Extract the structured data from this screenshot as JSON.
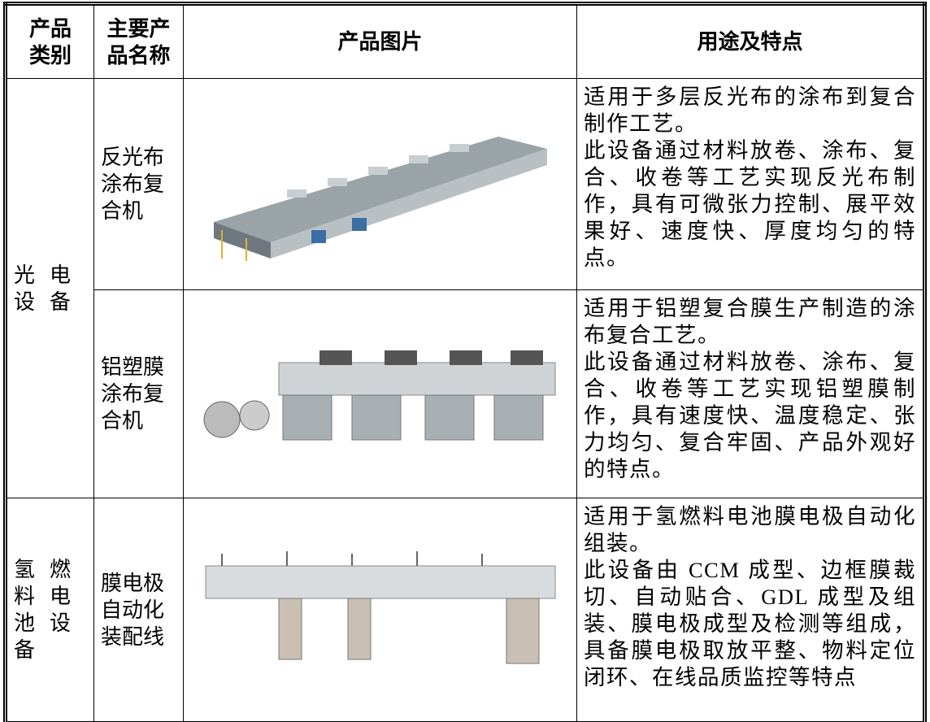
{
  "table": {
    "header": [
      "产品类别",
      "主要产品名称",
      "产品图片",
      "用途及特点"
    ],
    "rows": [
      {
        "category": "光电设备",
        "name": "反光布涂布复合机",
        "description": [
          "适用于多层反光布的涂布到复合制作工艺。",
          "此设备通过材料放卷、涂布、复合、收卷等工艺实现反光布制作，具有可微张力控制、展平效果好、速度快、厚度均匀的特点。"
        ]
      },
      {
        "name": "铝塑膜涂布复合机",
        "description": [
          "适用于铝塑复合膜生产制造的涂布复合工艺。",
          "此设备通过材料放卷、涂布、复合、收卷等工艺实现铝塑膜制作，具有速度快、温度稳定、张力均匀、复合牢固、产品外观好的特点。"
        ]
      },
      {
        "category": "氢燃料电池设备",
        "name": "膜电极自动化装配线",
        "description": [
          "适用于氢燃料电池膜电极自动化组装。",
          "此设备由 CCM 成型、边框膜裁切、自动贴合、GDL 成型及组装、膜电极成型及检测等组成，具备膜电极取放平整、物料定位闭环、在线品质监控等特点"
        ]
      }
    ]
  }
}
